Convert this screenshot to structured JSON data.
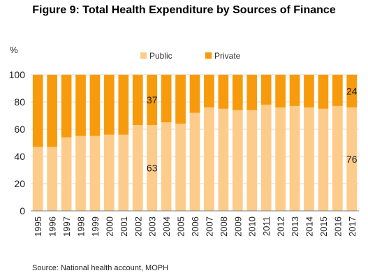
{
  "title": "Figure 9: Total Health Expenditure by Sources of Finance",
  "unit": "%",
  "source": "Source: National health account, MOPH",
  "colors": {
    "public": "#FDCB8A",
    "private": "#F79B0C",
    "grid": "#D9D9D9",
    "axis": "#7F7F7F"
  },
  "chart_data": {
    "type": "bar",
    "stacked": true,
    "categories": [
      "1995",
      "1996",
      "1997",
      "1998",
      "1999",
      "2000",
      "2001",
      "2002",
      "2003",
      "2004",
      "2005",
      "2006",
      "2007",
      "2008",
      "2009",
      "2010",
      "2011",
      "2012",
      "2013",
      "2014",
      "2015",
      "2016",
      "2017"
    ],
    "series": [
      {
        "name": "Public",
        "color": "#FDCB8A",
        "values": [
          47,
          47,
          54,
          55,
          55,
          56,
          56,
          63,
          63,
          65,
          64,
          72,
          76,
          75,
          74,
          74,
          78,
          76,
          77,
          76,
          75,
          77,
          76
        ]
      },
      {
        "name": "Private",
        "color": "#F79B0C",
        "values": [
          53,
          53,
          46,
          45,
          45,
          44,
          44,
          37,
          37,
          35,
          36,
          28,
          24,
          25,
          26,
          26,
          22,
          24,
          23,
          24,
          25,
          23,
          24
        ]
      }
    ],
    "ylim": [
      0,
      100
    ],
    "yticks": [
      "0",
      "20",
      "40",
      "60",
      "80",
      "100"
    ],
    "grid": true,
    "legend": "top-center",
    "annotations": [
      {
        "category": "2003",
        "series": "Private",
        "text": "37"
      },
      {
        "category": "2003",
        "series": "Public",
        "text": "63"
      },
      {
        "category": "2017",
        "series": "Private",
        "text": "24"
      },
      {
        "category": "2017",
        "series": "Public",
        "text": "76"
      }
    ]
  }
}
